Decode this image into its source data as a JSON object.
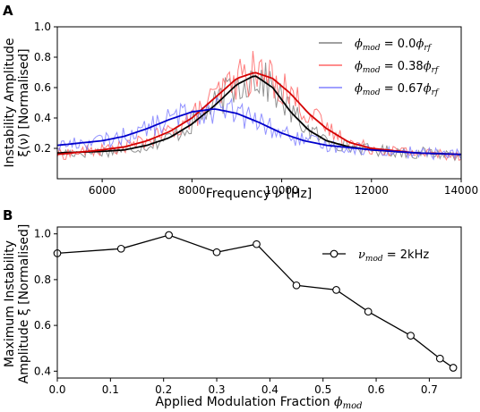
{
  "chart_data": [
    {
      "panel": "A",
      "type": "line",
      "xlabel": "Frequency ν [Hz]",
      "ylabel_line1": "Instability Amplitude",
      "ylabel_line2": "ξ(ν) [Normalised]",
      "xlim": [
        5000,
        14000
      ],
      "ylim": [
        0.0,
        1.0
      ],
      "xticks": [
        6000,
        8000,
        10000,
        12000,
        14000
      ],
      "yticks": [
        0.2,
        0.4,
        0.6,
        0.8,
        1.0
      ],
      "legend_position": "top-right",
      "series": [
        {
          "name": "ϕmod = 0.0ϕrf",
          "color": "#808080",
          "fit_color": "#000000",
          "x": [
            5000,
            6000,
            6500,
            7000,
            7500,
            8000,
            8500,
            9000,
            9400,
            9800,
            10200,
            10600,
            11000,
            11500,
            12000,
            13000,
            14000
          ],
          "values": [
            0.17,
            0.18,
            0.19,
            0.22,
            0.27,
            0.36,
            0.48,
            0.62,
            0.68,
            0.6,
            0.44,
            0.32,
            0.25,
            0.21,
            0.19,
            0.17,
            0.16
          ]
        },
        {
          "name": "ϕmod = 0.38ϕrf",
          "color": "#ff6666",
          "fit_color": "#d40000",
          "x": [
            5000,
            6000,
            6500,
            7000,
            7500,
            8000,
            8500,
            9000,
            9400,
            9800,
            10200,
            10600,
            11000,
            11500,
            12000,
            13000,
            14000
          ],
          "values": [
            0.16,
            0.19,
            0.21,
            0.25,
            0.31,
            0.4,
            0.53,
            0.66,
            0.7,
            0.66,
            0.56,
            0.43,
            0.33,
            0.24,
            0.2,
            0.17,
            0.16
          ]
        },
        {
          "name": "ϕmod = 0.67ϕrf",
          "color": "#8080ff",
          "fit_color": "#0000cc",
          "x": [
            5000,
            6000,
            6500,
            7000,
            7500,
            8000,
            8500,
            9000,
            9500,
            10000,
            10500,
            11000,
            12000,
            13000,
            14000
          ],
          "values": [
            0.22,
            0.25,
            0.28,
            0.33,
            0.39,
            0.44,
            0.46,
            0.43,
            0.37,
            0.3,
            0.25,
            0.22,
            0.19,
            0.17,
            0.16
          ]
        }
      ]
    },
    {
      "panel": "B",
      "type": "line",
      "xlabel": "Applied Modulation Fraction ϕmod",
      "ylabel_line1": "Maximum Instability",
      "ylabel_line2": "Amplitude ξ [Normalised]",
      "xlim": [
        0.0,
        0.76
      ],
      "ylim": [
        0.37,
        1.03
      ],
      "xticks": [
        0.0,
        0.1,
        0.2,
        0.3,
        0.4,
        0.5,
        0.6,
        0.7
      ],
      "yticks": [
        0.4,
        0.6,
        0.8,
        1.0
      ],
      "legend_position": "top-right",
      "series": [
        {
          "name": "νmod = 2kHz",
          "color": "#000000",
          "marker": "open-circle",
          "x": [
            0.0,
            0.12,
            0.21,
            0.3,
            0.375,
            0.45,
            0.525,
            0.585,
            0.665,
            0.72,
            0.745
          ],
          "values": [
            0.915,
            0.935,
            0.995,
            0.92,
            0.955,
            0.775,
            0.755,
            0.66,
            0.555,
            0.455,
            0.415
          ]
        }
      ]
    }
  ],
  "panel_labels": {
    "a": "A",
    "b": "B"
  },
  "legendA": [
    {
      "sym": "ϕ",
      "sub": "mod",
      "eq": " = 0.0",
      "sym2": "ϕ",
      "sub2": "rf"
    },
    {
      "sym": "ϕ",
      "sub": "mod",
      "eq": " = 0.38",
      "sym2": "ϕ",
      "sub2": "rf"
    },
    {
      "sym": "ϕ",
      "sub": "mod",
      "eq": " = 0.67",
      "sym2": "ϕ",
      "sub2": "rf"
    }
  ],
  "legendB": {
    "sym": "ν",
    "sub": "mod",
    "eq": " = 2kHz"
  },
  "axis_text": {
    "a_x_prefix": "Frequency ",
    "a_x_sym": "ν",
    "a_x_suffix": " [Hz]",
    "a_y1": "Instability Amplitude",
    "a_y2": "ξ(ν) [Normalised]",
    "b_x_prefix": "Applied Modulation Fraction ",
    "b_x_sym": "ϕ",
    "b_x_sub": "mod",
    "b_y1": "Maximum Instability",
    "b_y2": "Amplitude ξ [Normalised]"
  }
}
